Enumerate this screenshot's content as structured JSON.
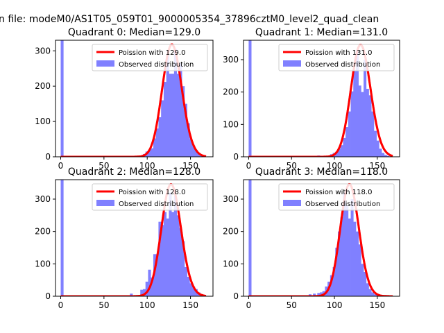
{
  "figure": {
    "suptitle": "n file: modeM0/AS1T05_059T01_9000005354_37896cztM0_level2_quad_clean"
  },
  "chart_data": [
    {
      "type": "bar",
      "title": "Quadrant 0: Median=129.0",
      "median": 129.0,
      "xlim": [
        -6,
        176
      ],
      "ylim": [
        0,
        330
      ],
      "xticks": [
        0,
        50,
        100,
        150
      ],
      "yticks": [
        0,
        100,
        200,
        300
      ],
      "grid": false,
      "legend_position": "top-right",
      "series": [
        {
          "name": "Poission with 129.0",
          "kind": "line",
          "color": "#ff0000",
          "mean": 129.0,
          "peak": 318
        },
        {
          "name": "Observed distribution",
          "kind": "histogram",
          "color": "#8080ff",
          "bin_width": 3.3,
          "bins": [
            [
              0,
              330
            ],
            [
              95,
              8
            ],
            [
              98,
              15
            ],
            [
              101,
              20
            ],
            [
              104,
              24
            ],
            [
              107,
              52
            ],
            [
              110,
              80
            ],
            [
              113,
              112
            ],
            [
              116,
              160
            ],
            [
              119,
              212
            ],
            [
              122,
              290
            ],
            [
              125,
              235
            ],
            [
              128,
              235
            ],
            [
              131,
              305
            ],
            [
              134,
              235
            ],
            [
              137,
              265
            ],
            [
              140,
              200
            ],
            [
              143,
              150
            ],
            [
              146,
              95
            ],
            [
              149,
              50
            ],
            [
              152,
              32
            ],
            [
              155,
              20
            ],
            [
              158,
              10
            ],
            [
              161,
              6
            ],
            [
              164,
              3
            ]
          ]
        }
      ]
    },
    {
      "type": "bar",
      "title": "Quadrant 1: Median=131.0",
      "median": 131.0,
      "xlim": [
        -6,
        176
      ],
      "ylim": [
        0,
        360
      ],
      "xticks": [
        0,
        50,
        100,
        150
      ],
      "yticks": [
        0,
        100,
        200,
        300
      ],
      "grid": false,
      "legend_position": "top-right",
      "series": [
        {
          "name": "Poission with 131.0",
          "kind": "line",
          "color": "#ff0000",
          "mean": 131.0,
          "peak": 346
        },
        {
          "name": "Observed distribution",
          "kind": "histogram",
          "color": "#8080ff",
          "bin_width": 3.3,
          "bins": [
            [
              0,
              360
            ],
            [
              28,
              2
            ],
            [
              60,
              2
            ],
            [
              80,
              4
            ],
            [
              95,
              8
            ],
            [
              98,
              12
            ],
            [
              101,
              16
            ],
            [
              104,
              25
            ],
            [
              107,
              36
            ],
            [
              110,
              58
            ],
            [
              113,
              92
            ],
            [
              116,
              140
            ],
            [
              119,
              202
            ],
            [
              122,
              265
            ],
            [
              125,
              330
            ],
            [
              128,
              220
            ],
            [
              131,
              200
            ],
            [
              134,
              300
            ],
            [
              137,
              210
            ],
            [
              140,
              190
            ],
            [
              143,
              140
            ],
            [
              146,
              80
            ],
            [
              149,
              50
            ],
            [
              152,
              25
            ],
            [
              155,
              12
            ],
            [
              158,
              6
            ],
            [
              161,
              3
            ]
          ]
        }
      ]
    },
    {
      "type": "bar",
      "title": "Quadrant 2: Median=128.0",
      "median": 128.0,
      "xlim": [
        -6,
        176
      ],
      "ylim": [
        0,
        360
      ],
      "xticks": [
        0,
        50,
        100,
        150
      ],
      "yticks": [
        0,
        100,
        200,
        300
      ],
      "grid": false,
      "legend_position": "top-right",
      "series": [
        {
          "name": "Poission with 128.0",
          "kind": "line",
          "color": "#ff0000",
          "mean": 128.0,
          "peak": 346
        },
        {
          "name": "Observed distribution",
          "kind": "histogram",
          "color": "#8080ff",
          "bin_width": 3.3,
          "bins": [
            [
              0,
              360
            ],
            [
              80,
              8
            ],
            [
              92,
              20
            ],
            [
              95,
              22
            ],
            [
              98,
              45
            ],
            [
              101,
              82
            ],
            [
              104,
              58
            ],
            [
              107,
              130
            ],
            [
              110,
              130
            ],
            [
              113,
              230
            ],
            [
              116,
              220
            ],
            [
              119,
              260
            ],
            [
              122,
              240
            ],
            [
              125,
              320
            ],
            [
              128,
              260
            ],
            [
              131,
              310
            ],
            [
              134,
              250
            ],
            [
              137,
              210
            ],
            [
              140,
              170
            ],
            [
              143,
              90
            ],
            [
              146,
              60
            ],
            [
              149,
              40
            ],
            [
              152,
              30
            ],
            [
              155,
              22
            ],
            [
              158,
              12
            ],
            [
              161,
              5
            ],
            [
              164,
              3
            ]
          ]
        }
      ]
    },
    {
      "type": "bar",
      "title": "Quadrant 3: Median=118.0",
      "median": 118.0,
      "xlim": [
        -6,
        176
      ],
      "ylim": [
        0,
        360
      ],
      "xticks": [
        0,
        50,
        100,
        150
      ],
      "yticks": [
        0,
        100,
        200,
        300
      ],
      "grid": false,
      "legend_position": "top-right",
      "series": [
        {
          "name": "Poission with 118.0",
          "kind": "line",
          "color": "#ff0000",
          "mean": 118.0,
          "peak": 346
        },
        {
          "name": "Observed distribution",
          "kind": "histogram",
          "color": "#8080ff",
          "bin_width": 3.3,
          "bins": [
            [
              0,
              360
            ],
            [
              30,
              2
            ],
            [
              55,
              2
            ],
            [
              70,
              6
            ],
            [
              75,
              8
            ],
            [
              80,
              10
            ],
            [
              83,
              12
            ],
            [
              86,
              16
            ],
            [
              89,
              30
            ],
            [
              92,
              45
            ],
            [
              95,
              65
            ],
            [
              98,
              90
            ],
            [
              101,
              150
            ],
            [
              104,
              200
            ],
            [
              107,
              245
            ],
            [
              110,
              320
            ],
            [
              113,
              280
            ],
            [
              116,
              240
            ],
            [
              119,
              300
            ],
            [
              122,
              230
            ],
            [
              125,
              200
            ],
            [
              128,
              160
            ],
            [
              131,
              100
            ],
            [
              134,
              75
            ],
            [
              137,
              40
            ],
            [
              140,
              22
            ],
            [
              143,
              12
            ],
            [
              146,
              6
            ],
            [
              149,
              3
            ]
          ]
        }
      ]
    }
  ]
}
